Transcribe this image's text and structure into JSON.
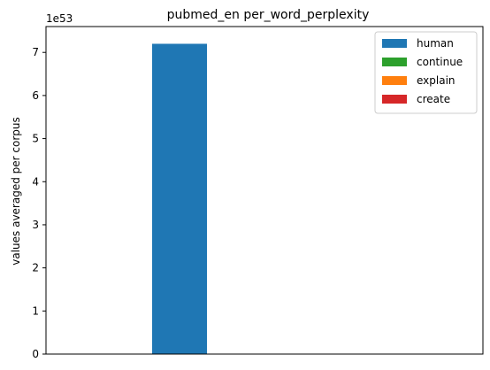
{
  "chart_data": {
    "type": "bar",
    "title": "pubmed_en per_word_perplexity",
    "xlabel": "",
    "ylabel": "values averaged per corpus",
    "y_offset_label": "1e53",
    "ylim": [
      0,
      7.6
    ],
    "yticks": [
      0,
      1,
      2,
      3,
      4,
      5,
      6,
      7
    ],
    "grid": false,
    "legend_position": "top-right",
    "categories": [
      "pubmed_en"
    ],
    "series": [
      {
        "name": "human",
        "color": "#1f77b4",
        "values": [
          7.2
        ]
      },
      {
        "name": "continue",
        "color": "#2ca02c",
        "values": [
          0
        ]
      },
      {
        "name": "explain",
        "color": "#ff7f0e",
        "values": [
          0
        ]
      },
      {
        "name": "create",
        "color": "#d62728",
        "values": [
          0
        ]
      }
    ]
  }
}
